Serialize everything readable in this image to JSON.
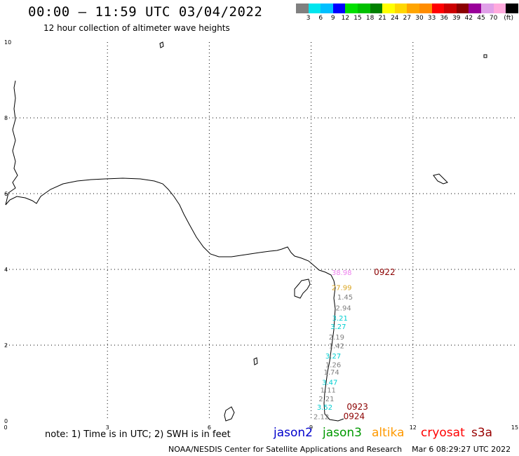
{
  "header": {
    "title": "00:00 – 11:59 UTC 03/04/2022",
    "subtitle": "12 hour collection of altimeter wave heights"
  },
  "scale": {
    "colors": [
      "#808080",
      "#00e5ee",
      "#00bfff",
      "#0000ff",
      "#00e000",
      "#00c000",
      "#008000",
      "#ffff00",
      "#ffd700",
      "#ffa500",
      "#ff8c00",
      "#ff0000",
      "#cc0000",
      "#8b0000",
      "#990099",
      "#e0a0e8",
      "#ffaadd",
      "#000000"
    ],
    "labels": [
      "3",
      "6",
      "9",
      "12",
      "15",
      "18",
      "21",
      "24",
      "27",
      "30",
      "33",
      "36",
      "39",
      "42",
      "45",
      "70",
      "(ft)"
    ]
  },
  "axes": {
    "x_ticks": [
      "0",
      "3",
      "6",
      "9",
      "12",
      "15"
    ],
    "y_ticks": [
      "10",
      "8",
      "6",
      "4",
      "2",
      "0"
    ],
    "x_range": [
      0,
      15
    ],
    "y_range": [
      0,
      10
    ],
    "grid": true
  },
  "observations": [
    {
      "text": "38.98",
      "color": "#ee82ee",
      "x": 9.9,
      "y": 3.85
    },
    {
      "text": "27.99",
      "color": "#daa520",
      "x": 9.9,
      "y": 3.45
    },
    {
      "text": "1.45",
      "color": "#808080",
      "x": 10.0,
      "y": 3.2
    },
    {
      "text": "2.94",
      "color": "#808080",
      "x": 9.95,
      "y": 2.92
    },
    {
      "text": "3.21",
      "color": "#00ced1",
      "x": 9.85,
      "y": 2.65
    },
    {
      "text": "3.27",
      "color": "#00ced1",
      "x": 9.8,
      "y": 2.43
    },
    {
      "text": "2.19",
      "color": "#808080",
      "x": 9.75,
      "y": 2.15
    },
    {
      "text": "1.42",
      "color": "#808080",
      "x": 9.75,
      "y": 1.92
    },
    {
      "text": "3.27",
      "color": "#00ced1",
      "x": 9.65,
      "y": 1.65
    },
    {
      "text": "1.26",
      "color": "#808080",
      "x": 9.65,
      "y": 1.42
    },
    {
      "text": "1.74",
      "color": "#808080",
      "x": 9.6,
      "y": 1.22
    },
    {
      "text": "3.47",
      "color": "#00ced1",
      "x": 9.55,
      "y": 0.95
    },
    {
      "text": "1.11",
      "color": "#808080",
      "x": 9.5,
      "y": 0.75
    },
    {
      "text": "2.21",
      "color": "#808080",
      "x": 9.45,
      "y": 0.52
    },
    {
      "text": "3.52",
      "color": "#00ced1",
      "x": 9.4,
      "y": 0.3
    },
    {
      "text": "2.12",
      "color": "#808080",
      "x": 9.3,
      "y": 0.05
    }
  ],
  "pass_times": [
    {
      "text": "0922",
      "x": 10.85,
      "y": 3.85
    },
    {
      "text": "0923",
      "x": 10.05,
      "y": 0.3
    },
    {
      "text": "0924",
      "x": 9.95,
      "y": 0.05
    }
  ],
  "legend": {
    "note": "note:  1) Time is in UTC;  2) SWH is in feet",
    "satellites": [
      {
        "name": "jason2",
        "color": "#0000cc"
      },
      {
        "name": "jason3",
        "color": "#009900"
      },
      {
        "name": "altika",
        "color": "#ff9900"
      },
      {
        "name": "cryosat",
        "color": "#ff0000"
      },
      {
        "name": "s3a",
        "color": "#990000"
      }
    ]
  },
  "footer": {
    "credit": "NOAA/NESDIS Center for Satellite Applications and Research",
    "timestamp": "Mar  6 08:29:27 UTC 2022"
  }
}
